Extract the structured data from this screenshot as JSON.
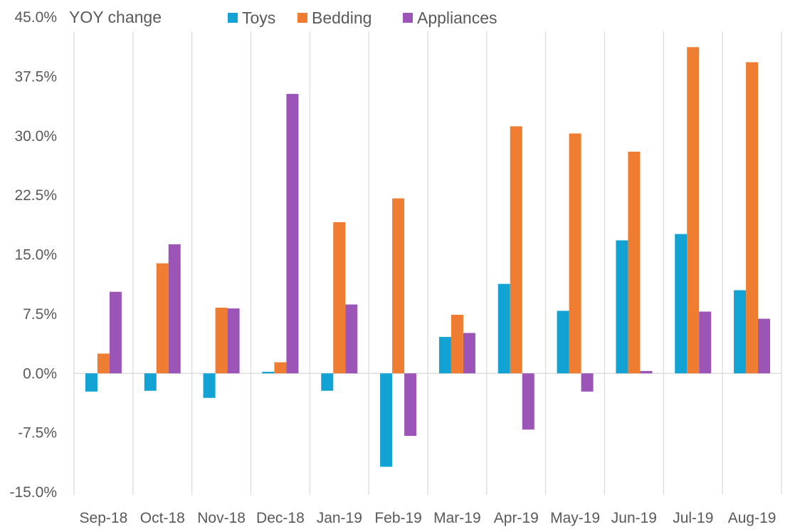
{
  "chart_data": {
    "type": "bar",
    "title": "",
    "xlabel": "",
    "ylabel": "YOY change",
    "ylim": [
      -15,
      45
    ],
    "yticks": [
      "45.0%",
      "37.5%",
      "30.0%",
      "22.5%",
      "15.0%",
      "7.5%",
      "0.0%",
      "-7.5%",
      "-15.0%"
    ],
    "ytick_values": [
      45,
      37.5,
      30,
      22.5,
      15,
      7.5,
      0,
      -7.5,
      -15
    ],
    "grid": "vertical separators between categories",
    "legend_position": "top",
    "categories": [
      "Sep-18",
      "Oct-18",
      "Nov-18",
      "Dec-18",
      "Jan-19",
      "Feb-19",
      "Mar-19",
      "Apr-19",
      "May-19",
      "Jun-19",
      "Jul-19",
      "Aug-19"
    ],
    "series": [
      {
        "name": "Toys",
        "color": "#12a3d4",
        "values": [
          -2.3,
          -2.2,
          -3.1,
          0.2,
          -2.2,
          -11.8,
          4.6,
          11.3,
          7.9,
          16.8,
          17.6,
          10.5
        ]
      },
      {
        "name": "Bedding",
        "color": "#ee7d31",
        "values": [
          2.5,
          13.9,
          8.3,
          1.4,
          19.1,
          22.1,
          7.4,
          31.2,
          30.3,
          28.0,
          41.2,
          39.3
        ]
      },
      {
        "name": "Appliances",
        "color": "#9a55b7",
        "values": [
          10.3,
          16.3,
          8.2,
          35.3,
          8.7,
          -7.9,
          5.1,
          -7.1,
          -2.3,
          0.3,
          7.8,
          6.9
        ]
      }
    ]
  }
}
